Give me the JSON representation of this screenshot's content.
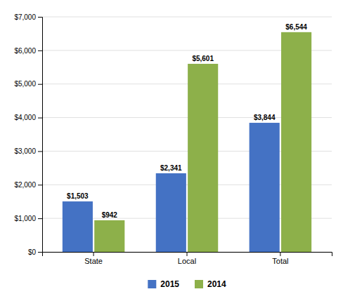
{
  "chart_data": {
    "type": "bar",
    "categories": [
      "State",
      "Local",
      "Total"
    ],
    "series": [
      {
        "name": "2015",
        "color": "#4472C4",
        "values": [
          1503,
          2341,
          3844
        ],
        "value_labels": [
          "$1,503",
          "$2,341",
          "$3,844"
        ]
      },
      {
        "name": "2014",
        "color": "#8DB04A",
        "values": [
          942,
          5601,
          6544
        ],
        "value_labels": [
          "$942",
          "$5,601",
          "$6,544"
        ]
      }
    ],
    "ylim": [
      0,
      7000
    ],
    "yticks": [
      {
        "value": 0,
        "label": "$0"
      },
      {
        "value": 1000,
        "label": "$1,000"
      },
      {
        "value": 2000,
        "label": "$2,000"
      },
      {
        "value": 3000,
        "label": "$3,000"
      },
      {
        "value": 4000,
        "label": "$4,000"
      },
      {
        "value": 5000,
        "label": "$5,000"
      },
      {
        "value": 6000,
        "label": "$6,000"
      },
      {
        "value": 7000,
        "label": "$7,000"
      }
    ],
    "grid": true,
    "legend": "bottom",
    "data_labels": true
  }
}
